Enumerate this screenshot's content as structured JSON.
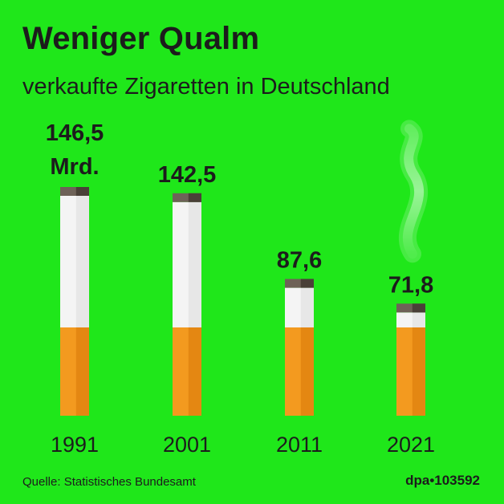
{
  "header": {
    "title": "Weniger Qualm",
    "subtitle": "verkaufte Zigaretten in Deutschland"
  },
  "footer": {
    "source": "Quelle: Statistisches Bundesamt",
    "credit": "dpa•103592"
  },
  "colors": {
    "background": "#1fe71a",
    "paper": "#f4f4f4",
    "paper_shade": "#dcdcdc",
    "filter": "#f39a1f",
    "filter_shade": "#e48712",
    "ash": "#6e6258",
    "ash_dark": "#4a4038",
    "text": "#1c1c1c"
  },
  "chart_data": {
    "type": "bar",
    "categories": [
      "1991",
      "2001",
      "2011",
      "2021"
    ],
    "values": [
      146.5,
      142.5,
      87.6,
      71.8
    ],
    "value_labels": [
      "146,5",
      "142,5",
      "87,6",
      "71,8"
    ],
    "unit_label": "Mrd.",
    "title": "Weniger Qualm",
    "subtitle": "verkaufte Zigaretten in Deutschland",
    "xlabel": "",
    "ylabel": "",
    "ylim": [
      0,
      146.5
    ],
    "grid": false,
    "legend": "none"
  }
}
